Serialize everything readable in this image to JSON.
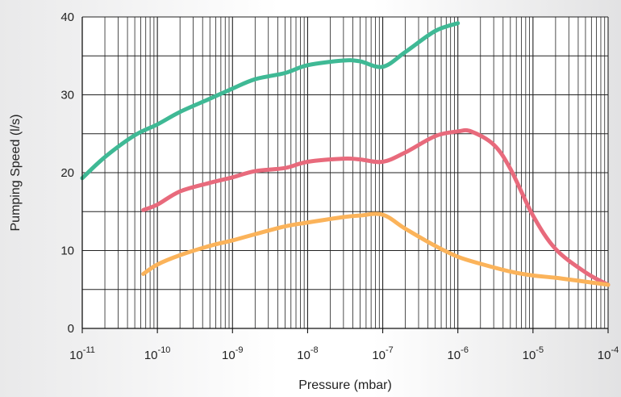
{
  "chart_data": {
    "type": "line",
    "xlabel": "Pressure (mbar)",
    "ylabel": "Pumping Speed (l/s)",
    "xscale": "log",
    "xlim": [
      "1e-11",
      "1e-4"
    ],
    "ylim": [
      0,
      40
    ],
    "grid": true,
    "x_tick_bases": [
      "10",
      "10",
      "10",
      "10",
      "10",
      "10",
      "10",
      "10"
    ],
    "x_tick_exponents": [
      "-11",
      "-10",
      "-9",
      "-8",
      "-7",
      "-6",
      "-5",
      "-4"
    ],
    "y_ticks": [
      "0",
      "10",
      "20",
      "30",
      "40"
    ],
    "series": [
      {
        "color": "#3fb995",
        "x": [
          "1e-11",
          "2e-11",
          "5e-11",
          "1e-10",
          "2e-10",
          "5e-10",
          "1e-9",
          "2e-9",
          "5e-9",
          "1e-8",
          "3e-8",
          "5e-8",
          "1e-7",
          "2e-7",
          "5e-7",
          "1e-6"
        ],
        "y": [
          19.3,
          22.0,
          24.8,
          26.2,
          27.8,
          29.5,
          30.8,
          32.0,
          32.8,
          33.8,
          34.4,
          34.3,
          33.6,
          35.5,
          38.2,
          39.2
        ]
      },
      {
        "color": "#e86a7c",
        "x": [
          "6.5e-11",
          "1e-10",
          "2e-10",
          "5e-10",
          "1e-9",
          "2e-9",
          "5e-9",
          "1e-8",
          "3e-8",
          "5e-8",
          "1e-7",
          "2e-7",
          "5e-7",
          "1e-6",
          "1.5e-6",
          "3e-6",
          "5e-6",
          "1e-5",
          "2e-5",
          "5e-5",
          "1e-4"
        ],
        "y": [
          15.2,
          15.9,
          17.6,
          18.7,
          19.4,
          20.2,
          20.6,
          21.4,
          21.8,
          21.7,
          21.4,
          22.6,
          24.7,
          25.3,
          25.3,
          23.6,
          20.5,
          14.5,
          10.2,
          7.2,
          5.6
        ]
      },
      {
        "color": "#fbb35a",
        "x": [
          "6.5e-11",
          "1e-10",
          "2e-10",
          "5e-10",
          "1e-9",
          "2e-9",
          "5e-9",
          "1e-8",
          "3e-8",
          "5e-8",
          "1e-7",
          "2e-7",
          "5e-7",
          "1e-6",
          "2e-6",
          "5e-6",
          "1e-5",
          "2e-5",
          "5e-5",
          "1e-4"
        ],
        "y": [
          7.0,
          8.2,
          9.4,
          10.6,
          11.3,
          12.1,
          13.1,
          13.6,
          14.3,
          14.5,
          14.6,
          12.8,
          10.6,
          9.2,
          8.3,
          7.3,
          6.8,
          6.5,
          6.0,
          5.6
        ]
      }
    ]
  }
}
